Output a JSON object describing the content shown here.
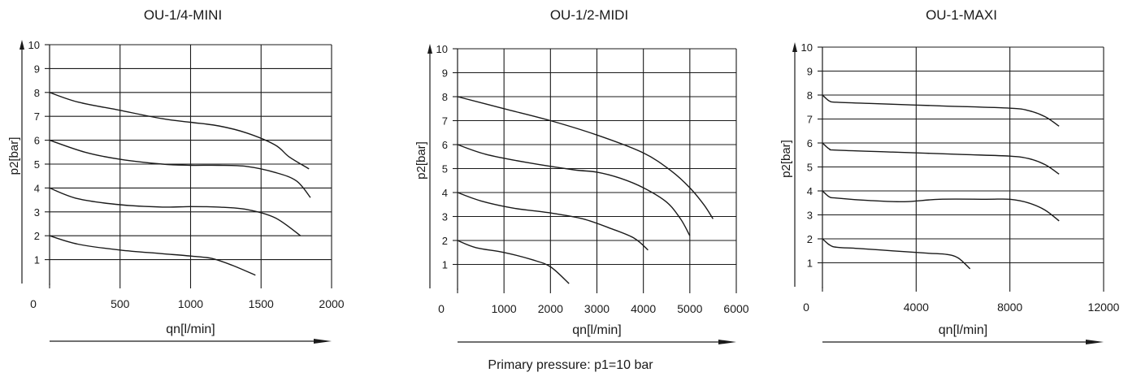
{
  "footer_note": "Primary pressure: p1=10 bar",
  "colors": {
    "ink": "#1a1a1a",
    "background": "#ffffff"
  },
  "chart_data": [
    {
      "type": "line",
      "title": "OU-1/4-MINI",
      "xlabel": "qn[l/min]",
      "ylabel": "p2[bar]",
      "xlim": [
        0,
        2000
      ],
      "ylim": [
        0,
        10
      ],
      "x_ticks": [
        "0",
        "500",
        "1000",
        "1500",
        "2000"
      ],
      "y_ticks": [
        "1",
        "2",
        "3",
        "4",
        "5",
        "6",
        "7",
        "8",
        "9",
        "10"
      ],
      "grid": true,
      "series": [
        {
          "points": [
            [
              0,
              8
            ],
            [
              200,
              7.6
            ],
            [
              500,
              7.25
            ],
            [
              800,
              6.9
            ],
            [
              1000,
              6.75
            ],
            [
              1200,
              6.6
            ],
            [
              1400,
              6.3
            ],
            [
              1600,
              5.8
            ],
            [
              1700,
              5.3
            ],
            [
              1840,
              4.8
            ]
          ]
        },
        {
          "points": [
            [
              0,
              6
            ],
            [
              250,
              5.5
            ],
            [
              500,
              5.2
            ],
            [
              800,
              5.0
            ],
            [
              1000,
              4.95
            ],
            [
              1200,
              4.95
            ],
            [
              1400,
              4.9
            ],
            [
              1600,
              4.65
            ],
            [
              1750,
              4.3
            ],
            [
              1850,
              3.6
            ]
          ]
        },
        {
          "points": [
            [
              0,
              4
            ],
            [
              200,
              3.55
            ],
            [
              500,
              3.3
            ],
            [
              800,
              3.2
            ],
            [
              1000,
              3.22
            ],
            [
              1200,
              3.2
            ],
            [
              1400,
              3.1
            ],
            [
              1600,
              2.75
            ],
            [
              1780,
              2.0
            ]
          ]
        },
        {
          "points": [
            [
              0,
              2
            ],
            [
              200,
              1.65
            ],
            [
              500,
              1.4
            ],
            [
              800,
              1.25
            ],
            [
              1000,
              1.15
            ],
            [
              1150,
              1.05
            ],
            [
              1300,
              0.75
            ],
            [
              1460,
              0.35
            ]
          ]
        }
      ]
    },
    {
      "type": "line",
      "title": "OU-1/2-MIDI",
      "xlabel": "qn[l/min]",
      "ylabel": "p2[bar]",
      "xlim": [
        0,
        6000
      ],
      "ylim": [
        0,
        10
      ],
      "x_ticks": [
        "0",
        "1000",
        "2000",
        "3000",
        "4000",
        "5000",
        "6000"
      ],
      "y_ticks": [
        "1",
        "2",
        "3",
        "4",
        "5",
        "6",
        "7",
        "8",
        "9",
        "10"
      ],
      "grid": true,
      "series": [
        {
          "points": [
            [
              0,
              8
            ],
            [
              1000,
              7.5
            ],
            [
              2000,
              7.0
            ],
            [
              3000,
              6.4
            ],
            [
              4000,
              5.65
            ],
            [
              4600,
              4.9
            ],
            [
              5000,
              4.2
            ],
            [
              5300,
              3.5
            ],
            [
              5500,
              2.9
            ]
          ]
        },
        {
          "points": [
            [
              0,
              6
            ],
            [
              600,
              5.6
            ],
            [
              1500,
              5.25
            ],
            [
              2500,
              4.95
            ],
            [
              3000,
              4.85
            ],
            [
              3500,
              4.6
            ],
            [
              4000,
              4.2
            ],
            [
              4500,
              3.6
            ],
            [
              4800,
              2.9
            ],
            [
              5000,
              2.2
            ]
          ]
        },
        {
          "points": [
            [
              0,
              4
            ],
            [
              500,
              3.65
            ],
            [
              1200,
              3.35
            ],
            [
              2000,
              3.15
            ],
            [
              2700,
              2.9
            ],
            [
              3300,
              2.5
            ],
            [
              3800,
              2.1
            ],
            [
              4100,
              1.6
            ]
          ]
        },
        {
          "points": [
            [
              0,
              2
            ],
            [
              400,
              1.7
            ],
            [
              1000,
              1.5
            ],
            [
              1600,
              1.2
            ],
            [
              2000,
              0.9
            ],
            [
              2400,
              0.2
            ]
          ]
        }
      ]
    },
    {
      "type": "line",
      "title": "OU-1-MAXI",
      "xlabel": "qn[l/min]",
      "ylabel": "p2[bar]",
      "xlim": [
        0,
        12000
      ],
      "ylim": [
        0,
        10
      ],
      "x_ticks": [
        "0",
        "4000",
        "8000",
        "12000"
      ],
      "y_ticks": [
        "1",
        "2",
        "3",
        "4",
        "5",
        "6",
        "7",
        "8",
        "9",
        "10"
      ],
      "grid": true,
      "series": [
        {
          "points": [
            [
              0,
              8
            ],
            [
              300,
              7.75
            ],
            [
              600,
              7.7
            ],
            [
              2000,
              7.65
            ],
            [
              5000,
              7.55
            ],
            [
              8000,
              7.45
            ],
            [
              8800,
              7.35
            ],
            [
              9500,
              7.1
            ],
            [
              10100,
              6.7
            ]
          ]
        },
        {
          "points": [
            [
              0,
              6
            ],
            [
              300,
              5.75
            ],
            [
              600,
              5.7
            ],
            [
              3000,
              5.62
            ],
            [
              6000,
              5.52
            ],
            [
              8000,
              5.45
            ],
            [
              8800,
              5.35
            ],
            [
              9500,
              5.1
            ],
            [
              10100,
              4.7
            ]
          ]
        },
        {
          "points": [
            [
              0,
              4
            ],
            [
              300,
              3.75
            ],
            [
              600,
              3.7
            ],
            [
              2000,
              3.6
            ],
            [
              3500,
              3.55
            ],
            [
              5000,
              3.65
            ],
            [
              7000,
              3.65
            ],
            [
              8000,
              3.65
            ],
            [
              8800,
              3.5
            ],
            [
              9500,
              3.2
            ],
            [
              10100,
              2.75
            ]
          ]
        },
        {
          "points": [
            [
              0,
              2
            ],
            [
              300,
              1.75
            ],
            [
              600,
              1.65
            ],
            [
              1500,
              1.6
            ],
            [
              3000,
              1.5
            ],
            [
              4500,
              1.4
            ],
            [
              5300,
              1.35
            ],
            [
              5800,
              1.2
            ],
            [
              6300,
              0.75
            ]
          ]
        }
      ]
    }
  ]
}
